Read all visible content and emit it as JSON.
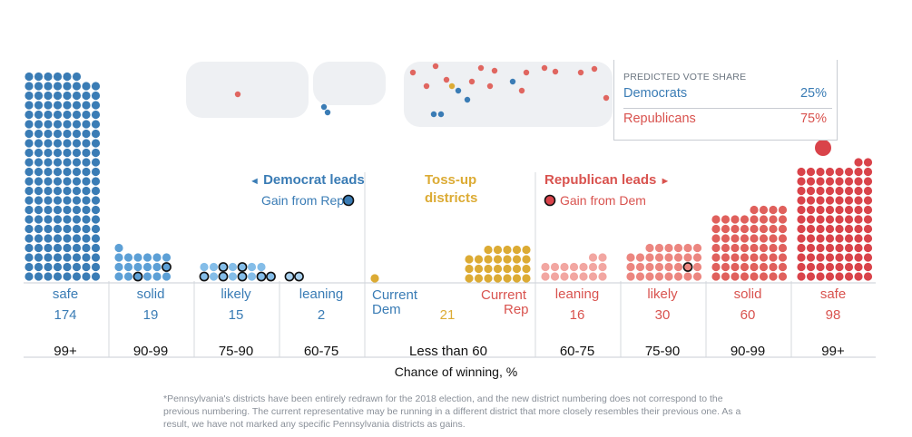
{
  "chart_data": {
    "type": "dot-histogram",
    "xlabel": "Chance of winning, %",
    "categories": [
      {
        "party": "dem",
        "label": "safe",
        "count": 174,
        "range": "99+",
        "gains": 0
      },
      {
        "party": "dem",
        "label": "solid",
        "count": 19,
        "range": "90-99",
        "gains": 3
      },
      {
        "party": "dem",
        "label": "likely",
        "count": 15,
        "range": "75-90",
        "gains": 7
      },
      {
        "party": "dem",
        "label": "leaning",
        "count": 2,
        "range": "60-75",
        "gains": 2
      },
      {
        "party": "tossup",
        "label": "",
        "count": 21,
        "range": "Less than 60",
        "current_dem": 1,
        "current_rep": 20
      },
      {
        "party": "rep",
        "label": "leaning",
        "count": 16,
        "range": "60-75",
        "gains": 0
      },
      {
        "party": "rep",
        "label": "likely",
        "count": 30,
        "range": "75-90",
        "gains": 1
      },
      {
        "party": "rep",
        "label": "solid",
        "count": 60,
        "range": "90-99",
        "gains": 0
      },
      {
        "party": "rep",
        "label": "safe",
        "count": 98,
        "range": "99+",
        "gains": 0
      }
    ],
    "colors": {
      "dem_safe": "#3a7cb5",
      "dem_solid": "#5da0d6",
      "dem_likely": "#84bde8",
      "dem_leaning": "#a9d1ef",
      "tossup": "#dcab34",
      "rep_leaning": "#f2a6a1",
      "rep_likely": "#ec8680",
      "rep_solid": "#e0605c",
      "rep_safe": "#d9434a"
    }
  },
  "labels": {
    "dem_leads": "Democrat leads",
    "dem_leads_arrow": "◄",
    "dem_gain": "Gain from Rep",
    "tossup_line1": "Toss-up",
    "tossup_line2": "districts",
    "rep_leads": "Republican leads",
    "rep_leads_arrow": "►",
    "rep_gain": "Gain from Dem",
    "current_dem_1": "Current",
    "current_dem_2": "Dem",
    "current_rep_1": "Current",
    "current_rep_2": "Rep"
  },
  "tooltip": {
    "title": "PREDICTED VOTE SHARE",
    "dem_label": "Democrats",
    "dem_value": "25%",
    "rep_label": "Republicans",
    "rep_value": "75%"
  },
  "footnote": "*Pennsylvania's districts have been entirely redrawn for the 2018 election, and the new district numbering does not correspond to the previous numbering. The current representative may be running in a different district that more closely resembles their previous one. As a result, we have not marked any specific Pennsylvania districts as gains."
}
